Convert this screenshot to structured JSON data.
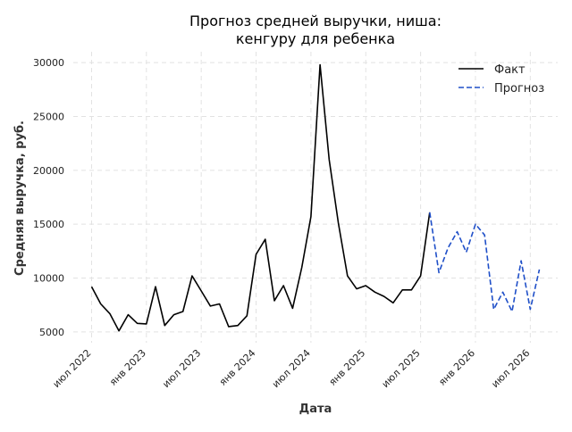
{
  "chart_data": {
    "type": "line",
    "title": "Прогноз средней выручки, ниша:\nкенгуру для ребенка",
    "xlabel": "Дата",
    "ylabel": "Средняя выручка, руб.",
    "x_ticks": [
      {
        "date": "2022-07",
        "label": "июл 2022"
      },
      {
        "date": "2023-01",
        "label": "янв 2023"
      },
      {
        "date": "2023-07",
        "label": "июл 2023"
      },
      {
        "date": "2024-01",
        "label": "янв 2024"
      },
      {
        "date": "2024-07",
        "label": "июл 2024"
      },
      {
        "date": "2025-01",
        "label": "янв 2025"
      },
      {
        "date": "2025-07",
        "label": "июл 2025"
      },
      {
        "date": "2026-01",
        "label": "янв 2026"
      },
      {
        "date": "2026-07",
        "label": "июл 2026"
      }
    ],
    "y_ticks": [
      5000,
      10000,
      15000,
      20000,
      25000,
      30000
    ],
    "xlim": [
      "2022-05",
      "2026-10"
    ],
    "ylim": [
      4000,
      31000
    ],
    "grid": true,
    "legend_position": "top-right",
    "series": [
      {
        "name": "Факт",
        "color": "#000000",
        "style": "solid",
        "points": [
          {
            "x": "2022-07",
            "y": 9200
          },
          {
            "x": "2022-08",
            "y": 7600
          },
          {
            "x": "2022-09",
            "y": 6700
          },
          {
            "x": "2022-10",
            "y": 5100
          },
          {
            "x": "2022-11",
            "y": 6600
          },
          {
            "x": "2022-12",
            "y": 5800
          },
          {
            "x": "2023-01",
            "y": 5750
          },
          {
            "x": "2023-02",
            "y": 9200
          },
          {
            "x": "2023-03",
            "y": 5600
          },
          {
            "x": "2023-04",
            "y": 6600
          },
          {
            "x": "2023-05",
            "y": 6900
          },
          {
            "x": "2023-06",
            "y": 10200
          },
          {
            "x": "2023-07",
            "y": 8800
          },
          {
            "x": "2023-08",
            "y": 7400
          },
          {
            "x": "2023-09",
            "y": 7600
          },
          {
            "x": "2023-10",
            "y": 5500
          },
          {
            "x": "2023-11",
            "y": 5600
          },
          {
            "x": "2023-12",
            "y": 6500
          },
          {
            "x": "2024-01",
            "y": 12200
          },
          {
            "x": "2024-02",
            "y": 13600
          },
          {
            "x": "2024-03",
            "y": 7900
          },
          {
            "x": "2024-04",
            "y": 9300
          },
          {
            "x": "2024-05",
            "y": 7200
          },
          {
            "x": "2024-06",
            "y": 11000
          },
          {
            "x": "2024-07",
            "y": 15700
          },
          {
            "x": "2024-08",
            "y": 29800
          },
          {
            "x": "2024-09",
            "y": 21000
          },
          {
            "x": "2024-10",
            "y": 15100
          },
          {
            "x": "2024-11",
            "y": 10200
          },
          {
            "x": "2024-12",
            "y": 9000
          },
          {
            "x": "2025-01",
            "y": 9300
          },
          {
            "x": "2025-02",
            "y": 8700
          },
          {
            "x": "2025-03",
            "y": 8300
          },
          {
            "x": "2025-04",
            "y": 7700
          },
          {
            "x": "2025-05",
            "y": 8900
          },
          {
            "x": "2025-06",
            "y": 8900
          },
          {
            "x": "2025-07",
            "y": 10200
          },
          {
            "x": "2025-08",
            "y": 16100
          }
        ]
      },
      {
        "name": "Прогноз",
        "color": "#1f4fc8",
        "style": "dashed",
        "points": [
          {
            "x": "2025-08",
            "y": 16100
          },
          {
            "x": "2025-09",
            "y": 10500
          },
          {
            "x": "2025-10",
            "y": 12800
          },
          {
            "x": "2025-11",
            "y": 14300
          },
          {
            "x": "2025-12",
            "y": 12400
          },
          {
            "x": "2026-01",
            "y": 15000
          },
          {
            "x": "2026-02",
            "y": 14000
          },
          {
            "x": "2026-03",
            "y": 7100
          },
          {
            "x": "2026-04",
            "y": 8700
          },
          {
            "x": "2026-05",
            "y": 6900
          },
          {
            "x": "2026-06",
            "y": 11600
          },
          {
            "x": "2026-07",
            "y": 7100
          },
          {
            "x": "2026-08",
            "y": 10800
          }
        ]
      }
    ]
  }
}
